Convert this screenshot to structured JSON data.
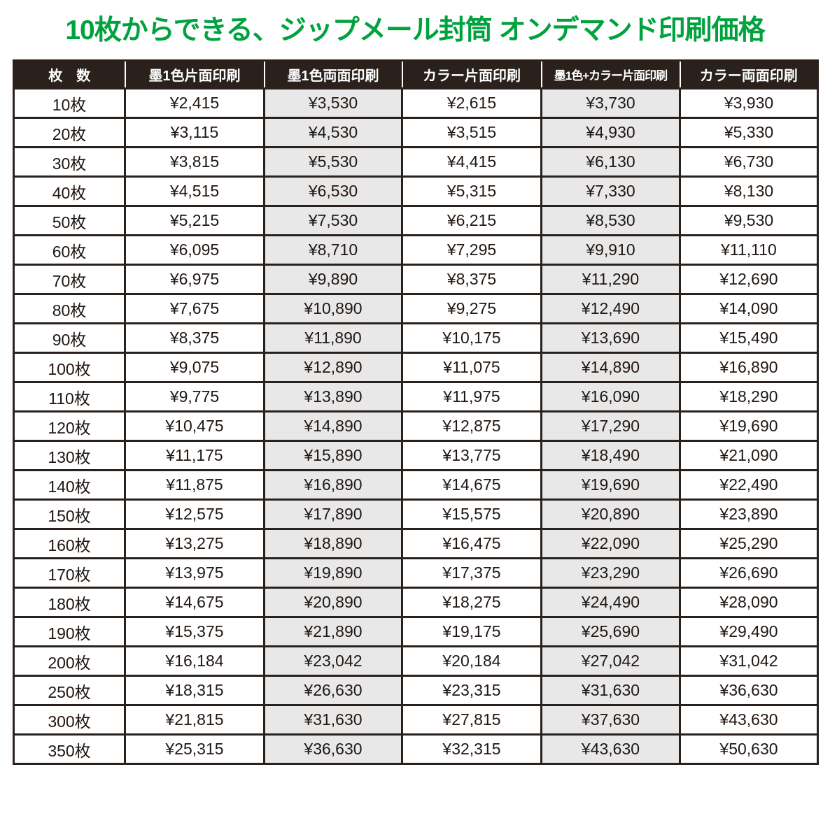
{
  "title": "10枚からできる、ジップメール封筒 オンデマンド印刷価格",
  "colors": {
    "title": "#00a23e",
    "header_bg": "#2a211d",
    "border": "#2a211d",
    "shaded_cell": "#e8e8e8",
    "page_bg": "#ffffff",
    "cell_text": "#1f1713",
    "header_text": "#ffffff"
  },
  "table": {
    "columns": [
      "枚　数",
      "墨1色片面印刷",
      "墨1色両面印刷",
      "カラー片面印刷",
      "墨1色+カラー片面印刷",
      "カラー両面印刷"
    ],
    "shaded_column_indexes": [
      2,
      4
    ],
    "rows": [
      [
        "10枚",
        "¥2,415",
        "¥3,530",
        "¥2,615",
        "¥3,730",
        "¥3,930"
      ],
      [
        "20枚",
        "¥3,115",
        "¥4,530",
        "¥3,515",
        "¥4,930",
        "¥5,330"
      ],
      [
        "30枚",
        "¥3,815",
        "¥5,530",
        "¥4,415",
        "¥6,130",
        "¥6,730"
      ],
      [
        "40枚",
        "¥4,515",
        "¥6,530",
        "¥5,315",
        "¥7,330",
        "¥8,130"
      ],
      [
        "50枚",
        "¥5,215",
        "¥7,530",
        "¥6,215",
        "¥8,530",
        "¥9,530"
      ],
      [
        "60枚",
        "¥6,095",
        "¥8,710",
        "¥7,295",
        "¥9,910",
        "¥11,110"
      ],
      [
        "70枚",
        "¥6,975",
        "¥9,890",
        "¥8,375",
        "¥11,290",
        "¥12,690"
      ],
      [
        "80枚",
        "¥7,675",
        "¥10,890",
        "¥9,275",
        "¥12,490",
        "¥14,090"
      ],
      [
        "90枚",
        "¥8,375",
        "¥11,890",
        "¥10,175",
        "¥13,690",
        "¥15,490"
      ],
      [
        "100枚",
        "¥9,075",
        "¥12,890",
        "¥11,075",
        "¥14,890",
        "¥16,890"
      ],
      [
        "110枚",
        "¥9,775",
        "¥13,890",
        "¥11,975",
        "¥16,090",
        "¥18,290"
      ],
      [
        "120枚",
        "¥10,475",
        "¥14,890",
        "¥12,875",
        "¥17,290",
        "¥19,690"
      ],
      [
        "130枚",
        "¥11,175",
        "¥15,890",
        "¥13,775",
        "¥18,490",
        "¥21,090"
      ],
      [
        "140枚",
        "¥11,875",
        "¥16,890",
        "¥14,675",
        "¥19,690",
        "¥22,490"
      ],
      [
        "150枚",
        "¥12,575",
        "¥17,890",
        "¥15,575",
        "¥20,890",
        "¥23,890"
      ],
      [
        "160枚",
        "¥13,275",
        "¥18,890",
        "¥16,475",
        "¥22,090",
        "¥25,290"
      ],
      [
        "170枚",
        "¥13,975",
        "¥19,890",
        "¥17,375",
        "¥23,290",
        "¥26,690"
      ],
      [
        "180枚",
        "¥14,675",
        "¥20,890",
        "¥18,275",
        "¥24,490",
        "¥28,090"
      ],
      [
        "190枚",
        "¥15,375",
        "¥21,890",
        "¥19,175",
        "¥25,690",
        "¥29,490"
      ],
      [
        "200枚",
        "¥16,184",
        "¥23,042",
        "¥20,184",
        "¥27,042",
        "¥31,042"
      ],
      [
        "250枚",
        "¥18,315",
        "¥26,630",
        "¥23,315",
        "¥31,630",
        "¥36,630"
      ],
      [
        "300枚",
        "¥21,815",
        "¥31,630",
        "¥27,815",
        "¥37,630",
        "¥43,630"
      ],
      [
        "350枚",
        "¥25,315",
        "¥36,630",
        "¥32,315",
        "¥43,630",
        "¥50,630"
      ]
    ]
  }
}
